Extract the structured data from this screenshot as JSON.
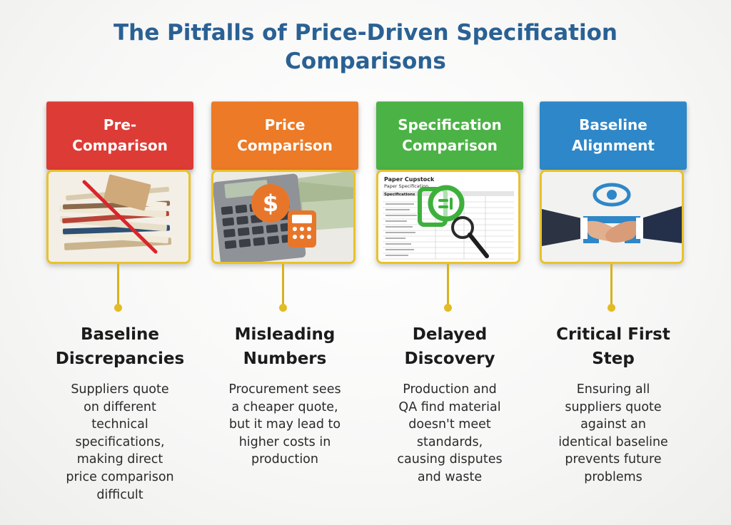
{
  "title_line1": "The Pitfalls of Price-Driven Specification",
  "title_line2": "Comparisons",
  "columns": [
    {
      "header_line1": "Pre-",
      "header_line2": "Comparison",
      "color": "#dd3b35",
      "subtitle_line1": "Baseline",
      "subtitle_line2": "Discrepancies",
      "description": [
        "Suppliers quote",
        "on different",
        "technical",
        "specifications,",
        "making direct",
        "price comparison",
        "difficult"
      ]
    },
    {
      "header_line1": "Price",
      "header_line2": "Comparison",
      "color": "#ec7a26",
      "subtitle_line1": "Misleading",
      "subtitle_line2": "Numbers",
      "description": [
        "Procurement sees",
        "a cheaper quote,",
        "but it may lead to",
        "higher costs in",
        "production"
      ]
    },
    {
      "header_line1": "Specification",
      "header_line2": "Comparison",
      "color": "#4bb245",
      "subtitle_line1": "Delayed",
      "subtitle_line2": "Discovery",
      "description": [
        "Production and",
        "QA find material",
        "doesn't meet",
        "standards,",
        "causing disputes",
        "and waste"
      ]
    },
    {
      "header_line1": "Baseline",
      "header_line2": "Alignment",
      "color": "#2e87c8",
      "subtitle_line1": "Critical First",
      "subtitle_line2": "Step",
      "description": [
        "Ensuring all",
        "suppliers quote",
        "against an",
        "identical baseline",
        "prevents future",
        "problems"
      ]
    }
  ],
  "document_image": {
    "heading": "Paper Cupstock",
    "subheading": "Paper Specification",
    "section": "Specifications"
  },
  "frame_color": "#e9c22a"
}
